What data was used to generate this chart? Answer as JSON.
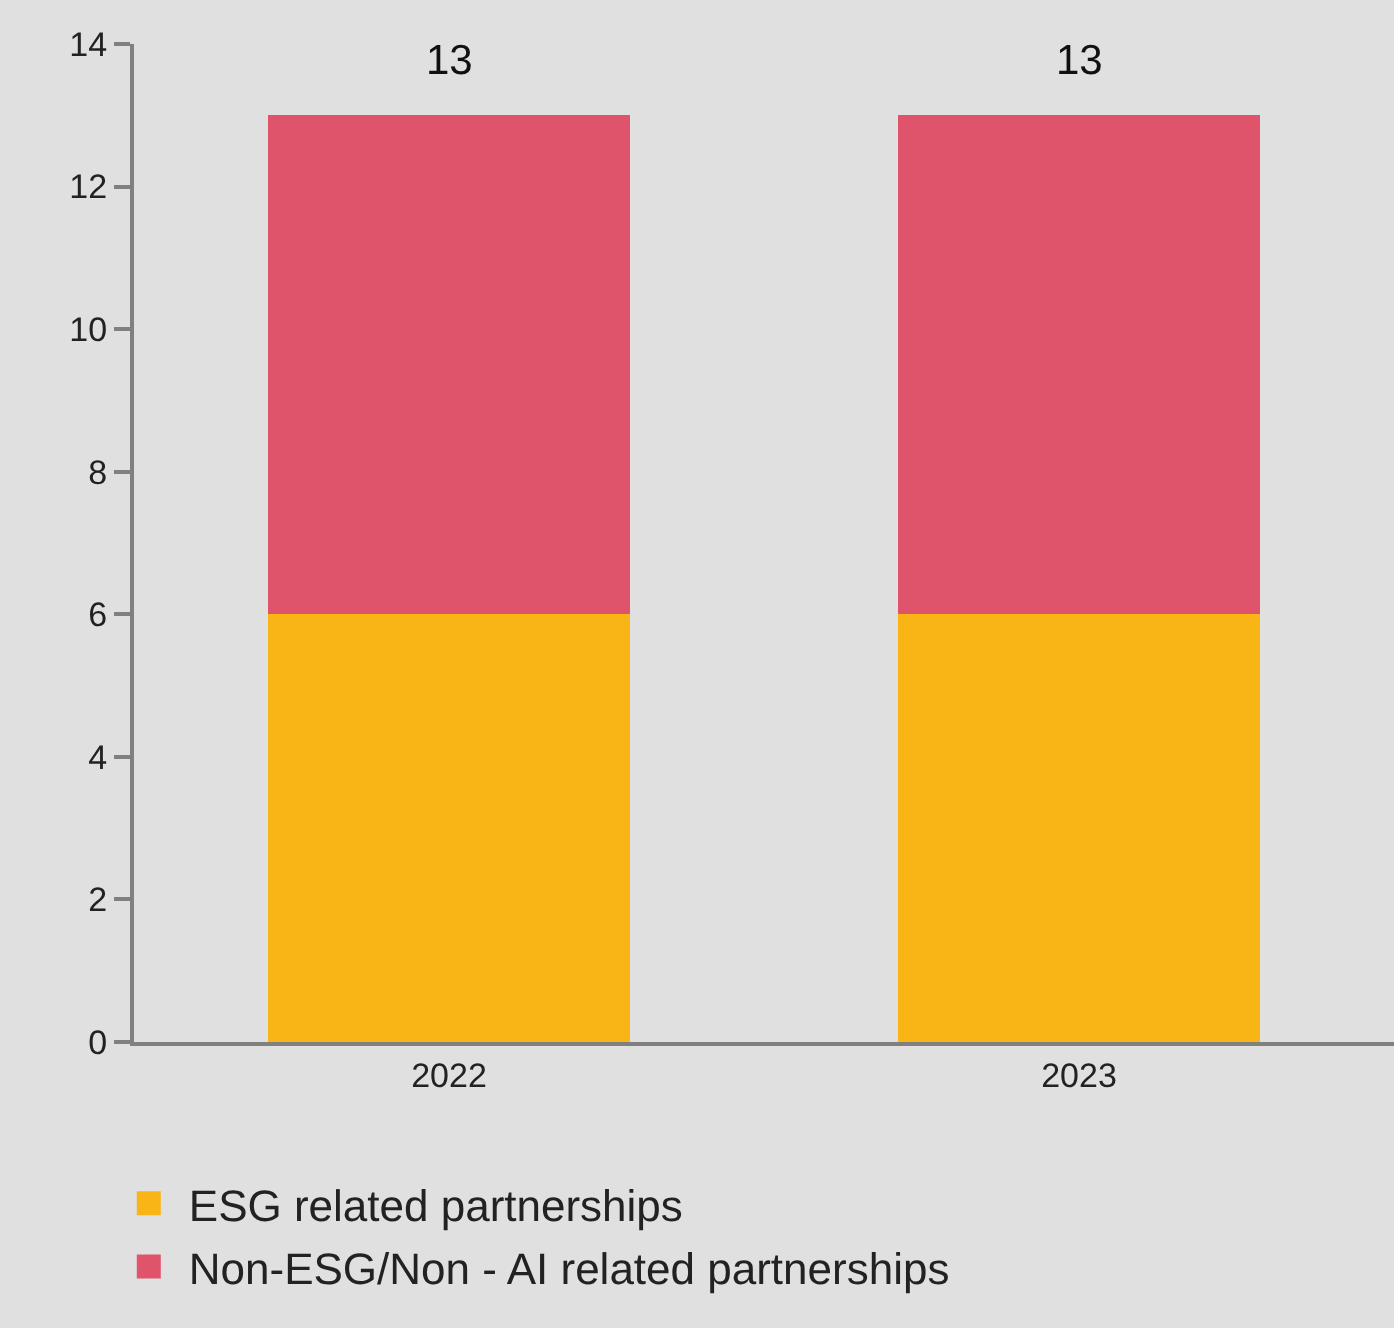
{
  "chart_data": {
    "type": "bar",
    "stacked": true,
    "categories": [
      "2022",
      "2023"
    ],
    "series": [
      {
        "name": "ESG related partnerships",
        "color": "#f9b515",
        "values": [
          6,
          6
        ]
      },
      {
        "name": "Non-ESG/Non - AI related partnerships",
        "color": "#e0546b",
        "values": [
          7,
          7
        ]
      }
    ],
    "totals": [
      "13",
      "13"
    ],
    "ylim": [
      0,
      14
    ],
    "yticks": [
      0,
      2,
      4,
      6,
      8,
      10,
      12,
      14
    ],
    "grid": false,
    "legend": "bottom left"
  }
}
